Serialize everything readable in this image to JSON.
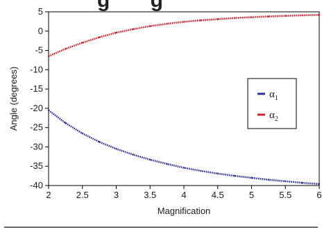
{
  "chart_data": {
    "type": "line",
    "title_visible_fragment": "g       g",
    "xlabel": "Magnification",
    "ylabel": "Angle (degrees)",
    "xlim": [
      2,
      6
    ],
    "ylim": [
      -40,
      5
    ],
    "x_ticks": [
      "2",
      "2.5",
      "3",
      "3.5",
      "4",
      "4.5",
      "5",
      "5.5",
      "6"
    ],
    "y_ticks": [
      "5",
      "0",
      "-5",
      "-10",
      "-15",
      "-20",
      "-25",
      "-30",
      "-35",
      "-40"
    ],
    "grid": false,
    "legend_position": "right",
    "x": [
      2.0,
      2.25,
      2.5,
      2.75,
      3.0,
      3.25,
      3.5,
      3.75,
      4.0,
      4.25,
      4.5,
      4.75,
      5.0,
      5.25,
      5.5,
      5.75,
      6.0
    ],
    "series": [
      {
        "name": "α1",
        "label_main": "α",
        "label_sub": "1",
        "color": "#2f2f9c",
        "values": [
          -20.5,
          -23.8,
          -26.5,
          -28.7,
          -30.5,
          -32.0,
          -33.3,
          -34.4,
          -35.4,
          -36.2,
          -36.9,
          -37.5,
          -38.0,
          -38.5,
          -38.9,
          -39.3,
          -39.6
        ]
      },
      {
        "name": "α2",
        "label_main": "α",
        "label_sub": "2",
        "color": "#d0202d",
        "values": [
          -6.5,
          -4.6,
          -3.0,
          -1.6,
          -0.4,
          0.5,
          1.3,
          1.9,
          2.4,
          2.8,
          3.1,
          3.4,
          3.6,
          3.8,
          3.95,
          4.1,
          4.2
        ]
      }
    ]
  }
}
